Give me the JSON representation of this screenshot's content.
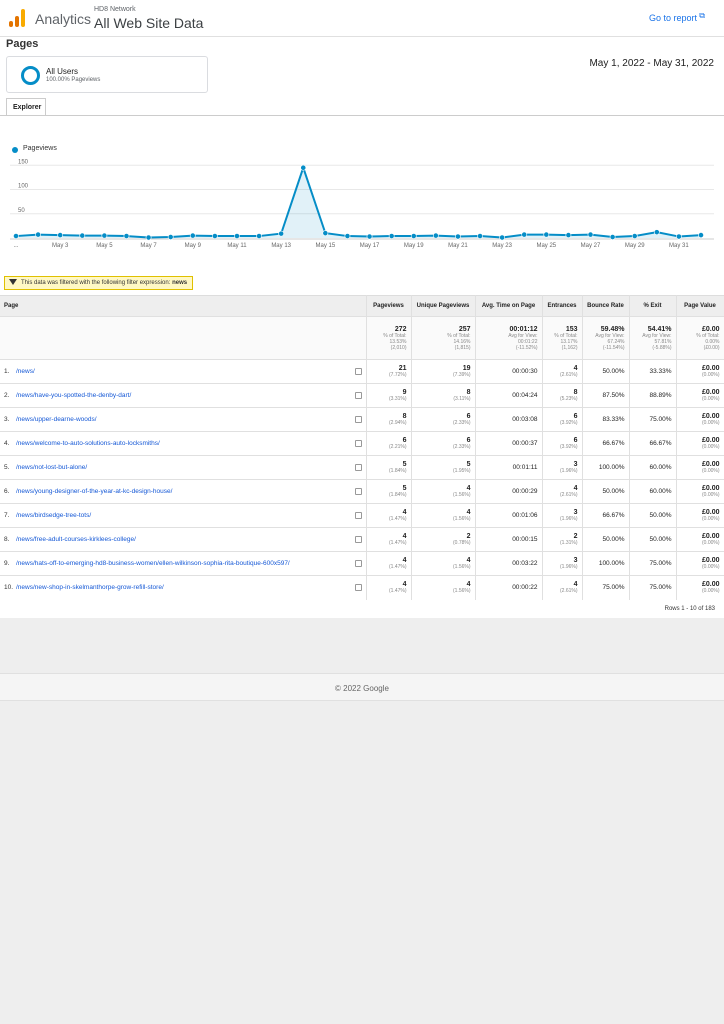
{
  "header": {
    "app_name": "Analytics",
    "account": "HD8 Network",
    "view": "All Web Site Data",
    "go_to_report": "Go to report",
    "logo_colors": [
      "#f9ab00",
      "#e37400",
      "#e37400"
    ]
  },
  "page_title": "Pages",
  "segment": {
    "name": "All Users",
    "sub": "100.00% Pageviews"
  },
  "date_range": "May 1, 2022 - May 31, 2022",
  "tab": "Explorer",
  "chart_data": {
    "type": "line",
    "legend": [
      "Pageviews"
    ],
    "color": "#058dc7",
    "x_tick_labels": [
      "...",
      "May 3",
      "May 5",
      "May 7",
      "May 9",
      "May 11",
      "May 13",
      "May 15",
      "May 17",
      "May 19",
      "May 21",
      "May 23",
      "May 25",
      "May 27",
      "May 29",
      "May 31"
    ],
    "y_tick_labels": [
      "150",
      "100",
      "50"
    ],
    "ylim": [
      0,
      165
    ],
    "series": [
      {
        "values": [
          4,
          7,
          6,
          5,
          5,
          4,
          1,
          2,
          5,
          4,
          4,
          4,
          9,
          145,
          10,
          4,
          3,
          4,
          4,
          5,
          3,
          4,
          1,
          7,
          7,
          6,
          7,
          2,
          4,
          12,
          3,
          6
        ]
      }
    ]
  },
  "filter": {
    "text": "This data was filtered with the following filter expression:",
    "expr": "news"
  },
  "table": {
    "headers": [
      "Page",
      "Pageviews",
      "Unique Pageviews",
      "Avg. Time on Page",
      "Entrances",
      "Bounce Rate",
      "% Exit",
      "Page Value"
    ],
    "totals": [
      {
        "v": "272",
        "s1": "% of Total:",
        "s2": "13.53%",
        "s3": "(2,010)"
      },
      {
        "v": "257",
        "s1": "% of Total:",
        "s2": "14.16%",
        "s3": "(1,815)"
      },
      {
        "v": "00:01:12",
        "s1": "Avg for View:",
        "s2": "00:01:22",
        "s3": "(-11.52%)"
      },
      {
        "v": "153",
        "s1": "% of Total:",
        "s2": "13.17%",
        "s3": "(1,162)"
      },
      {
        "v": "59.48%",
        "s1": "Avg for View:",
        "s2": "67.24%",
        "s3": "(-11.54%)"
      },
      {
        "v": "54.41%",
        "s1": "Avg for View:",
        "s2": "57.81%",
        "s3": "(-5.88%)"
      },
      {
        "v": "£0.00",
        "s1": "% of Total:",
        "s2": "0.00%",
        "s3": "(£0.00)"
      }
    ],
    "rows": [
      {
        "i": "1.",
        "page": "/news/",
        "pv": "21",
        "pvp": "(7.72%)",
        "upv": "19",
        "upvp": "(7.39%)",
        "t": "00:00:30",
        "e": "4",
        "ep": "(2.61%)",
        "br": "50.00%",
        "ex": "33.33%",
        "val": "£0.00",
        "valp": "(0.00%)"
      },
      {
        "i": "2.",
        "page": "/news/have-you-spotted-the-denby-dart/",
        "pv": "9",
        "pvp": "(3.31%)",
        "upv": "8",
        "upvp": "(3.11%)",
        "t": "00:04:24",
        "e": "8",
        "ep": "(5.23%)",
        "br": "87.50%",
        "ex": "88.89%",
        "val": "£0.00",
        "valp": "(0.00%)"
      },
      {
        "i": "3.",
        "page": "/news/upper-dearne-woods/",
        "pv": "8",
        "pvp": "(2.94%)",
        "upv": "6",
        "upvp": "(2.33%)",
        "t": "00:03:08",
        "e": "6",
        "ep": "(3.92%)",
        "br": "83.33%",
        "ex": "75.00%",
        "val": "£0.00",
        "valp": "(0.00%)"
      },
      {
        "i": "4.",
        "page": "/news/welcome-to-auto-solutions-auto-locksmiths/",
        "pv": "6",
        "pvp": "(2.21%)",
        "upv": "6",
        "upvp": "(2.33%)",
        "t": "00:00:37",
        "e": "6",
        "ep": "(3.92%)",
        "br": "66.67%",
        "ex": "66.67%",
        "val": "£0.00",
        "valp": "(0.00%)"
      },
      {
        "i": "5.",
        "page": "/news/not-lost-but-alone/",
        "pv": "5",
        "pvp": "(1.84%)",
        "upv": "5",
        "upvp": "(1.95%)",
        "t": "00:01:11",
        "e": "3",
        "ep": "(1.96%)",
        "br": "100.00%",
        "ex": "60.00%",
        "val": "£0.00",
        "valp": "(0.00%)"
      },
      {
        "i": "6.",
        "page": "/news/young-designer-of-the-year-at-kc-design-house/",
        "pv": "5",
        "pvp": "(1.84%)",
        "upv": "4",
        "upvp": "(1.56%)",
        "t": "00:00:29",
        "e": "4",
        "ep": "(2.61%)",
        "br": "50.00%",
        "ex": "60.00%",
        "val": "£0.00",
        "valp": "(0.00%)"
      },
      {
        "i": "7.",
        "page": "/news/birdsedge-tree-tots/",
        "pv": "4",
        "pvp": "(1.47%)",
        "upv": "4",
        "upvp": "(1.56%)",
        "t": "00:01:06",
        "e": "3",
        "ep": "(1.96%)",
        "br": "66.67%",
        "ex": "50.00%",
        "val": "£0.00",
        "valp": "(0.00%)"
      },
      {
        "i": "8.",
        "page": "/news/free-adult-courses-kirklees-college/",
        "pv": "4",
        "pvp": "(1.47%)",
        "upv": "2",
        "upvp": "(0.78%)",
        "t": "00:00:15",
        "e": "2",
        "ep": "(1.31%)",
        "br": "50.00%",
        "ex": "50.00%",
        "val": "£0.00",
        "valp": "(0.00%)"
      },
      {
        "i": "9.",
        "page": "/news/hats-off-to-emerging-hd8-business-women/ellen-wilkinson-sophia-rita-boutique-600x597/",
        "pv": "4",
        "pvp": "(1.47%)",
        "upv": "4",
        "upvp": "(1.56%)",
        "t": "00:03:22",
        "e": "3",
        "ep": "(1.96%)",
        "br": "100.00%",
        "ex": "75.00%",
        "val": "£0.00",
        "valp": "(0.00%)"
      },
      {
        "i": "10.",
        "page": "/news/new-shop-in-skelmanthorpe-grow-refill-store/",
        "pv": "4",
        "pvp": "(1.47%)",
        "upv": "4",
        "upvp": "(1.56%)",
        "t": "00:00:22",
        "e": "4",
        "ep": "(2.61%)",
        "br": "75.00%",
        "ex": "75.00%",
        "val": "£0.00",
        "valp": "(0.00%)"
      }
    ],
    "rows_info": "Rows 1 - 10 of 183"
  },
  "footer": "© 2022 Google"
}
